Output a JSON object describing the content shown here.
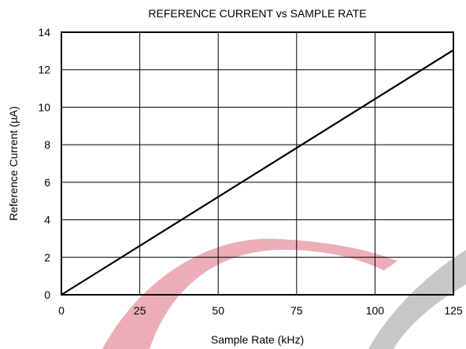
{
  "chart_data": {
    "type": "line",
    "title": "REFERENCE CURRENT vs SAMPLE RATE",
    "xlabel": "Sample Rate (kHz)",
    "ylabel": "Reference Current (µA)",
    "xlim": [
      0,
      125
    ],
    "ylim": [
      0,
      14
    ],
    "x_ticks": [
      "0",
      "25",
      "50",
      "75",
      "100",
      "125"
    ],
    "y_ticks": [
      "0",
      "2",
      "4",
      "6",
      "8",
      "10",
      "12",
      "14"
    ],
    "grid": true,
    "series": [
      {
        "x": [
          0,
          125
        ],
        "y": [
          0,
          13.05
        ]
      }
    ],
    "colors": {
      "line": "#000000",
      "watermark_red": "#e8a0ac",
      "watermark_gray": "#b4b4b4"
    }
  }
}
